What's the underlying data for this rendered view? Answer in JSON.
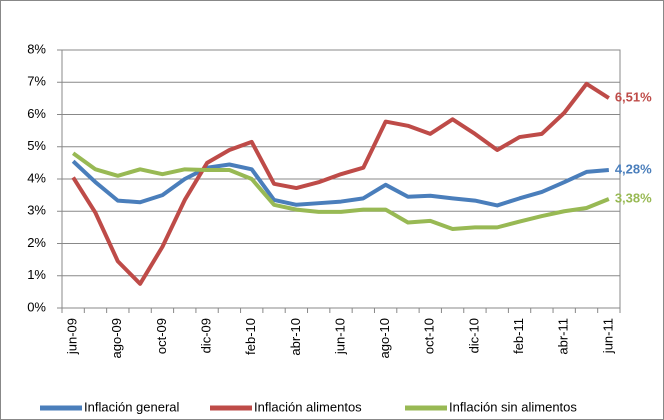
{
  "chart_data": {
    "type": "line",
    "categories": [
      "jun-09",
      null,
      "ago-09",
      null,
      "oct-09",
      null,
      "dic-09",
      null,
      "feb-10",
      null,
      "abr-10",
      null,
      "jun-10",
      null,
      "ago-10",
      null,
      "oct-10",
      null,
      "dic-10",
      null,
      "feb-11",
      null,
      "abr-11",
      null,
      "jun-11"
    ],
    "ylim": [
      0,
      8
    ],
    "yticks": [
      {
        "value": 0,
        "label": "0%"
      },
      {
        "value": 1,
        "label": "1%"
      },
      {
        "value": 2,
        "label": "2%"
      },
      {
        "value": 3,
        "label": "3%"
      },
      {
        "value": 4,
        "label": "4%"
      },
      {
        "value": 5,
        "label": "5%"
      },
      {
        "value": 6,
        "label": "6%"
      },
      {
        "value": 7,
        "label": "7%"
      },
      {
        "value": 8,
        "label": "8%"
      }
    ],
    "grid": true,
    "legend": "bottom",
    "series": [
      {
        "name": "Inflación general",
        "color": "#4a7ebb",
        "values": [
          4.55,
          3.9,
          3.33,
          3.28,
          3.5,
          4.0,
          4.35,
          4.45,
          4.3,
          3.35,
          3.2,
          3.25,
          3.3,
          3.4,
          3.82,
          3.45,
          3.48,
          3.4,
          3.33,
          3.18,
          3.4,
          3.6,
          3.9,
          4.22,
          4.28
        ],
        "value_labels": [
          null,
          null,
          null,
          null,
          null,
          null,
          null,
          null,
          null,
          null,
          null,
          null,
          null,
          null,
          null,
          null,
          null,
          null,
          null,
          null,
          null,
          null,
          null,
          null,
          "4,28%"
        ]
      },
      {
        "name": "Inflación alimentos",
        "color": "#be4b48",
        "values": [
          4.05,
          2.95,
          1.45,
          0.75,
          1.9,
          3.35,
          4.5,
          4.9,
          5.15,
          3.85,
          3.72,
          3.9,
          4.15,
          4.35,
          5.78,
          5.65,
          5.4,
          5.85,
          5.4,
          4.9,
          5.3,
          5.4,
          6.05,
          6.95,
          6.51
        ],
        "value_labels": [
          null,
          null,
          null,
          null,
          null,
          null,
          null,
          null,
          null,
          null,
          null,
          null,
          null,
          null,
          null,
          null,
          null,
          null,
          null,
          null,
          null,
          null,
          null,
          null,
          "6,51%"
        ]
      },
      {
        "name": "Inflación sin alimentos",
        "color": "#98b954",
        "values": [
          4.8,
          4.3,
          4.1,
          4.3,
          4.15,
          4.3,
          4.28,
          4.28,
          4.0,
          3.2,
          3.05,
          2.98,
          2.98,
          3.05,
          3.05,
          2.65,
          2.7,
          2.45,
          2.5,
          2.5,
          2.68,
          2.85,
          3.0,
          3.1,
          3.38
        ],
        "value_labels": [
          null,
          null,
          null,
          null,
          null,
          null,
          null,
          null,
          null,
          null,
          null,
          null,
          null,
          null,
          null,
          null,
          null,
          null,
          null,
          null,
          null,
          null,
          null,
          null,
          "3,38%"
        ]
      }
    ]
  }
}
